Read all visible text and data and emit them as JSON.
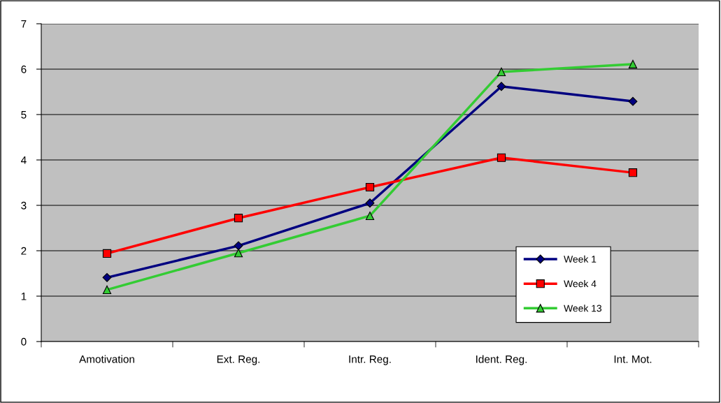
{
  "chart_data": {
    "type": "line",
    "categories": [
      "Amotivation",
      "Ext. Reg.",
      "Intr. Reg.",
      "Ident. Reg.",
      "Int. Mot."
    ],
    "series": [
      {
        "name": "Week 1",
        "color": "#000080",
        "marker": "diamond",
        "values": [
          1.41,
          2.11,
          3.05,
          5.62,
          5.29
        ]
      },
      {
        "name": "Week 4",
        "color": "#ff0000",
        "marker": "square",
        "values": [
          1.94,
          2.72,
          3.4,
          4.05,
          3.72
        ]
      },
      {
        "name": "Week 13",
        "color": "#33cc33",
        "marker": "triangle",
        "values": [
          1.14,
          1.95,
          2.77,
          5.94,
          6.11
        ]
      }
    ],
    "ylim": [
      0,
      7
    ],
    "yticks": [
      0,
      1,
      2,
      3,
      4,
      5,
      6,
      7
    ],
    "grid": "y",
    "legend": "bottom right"
  }
}
